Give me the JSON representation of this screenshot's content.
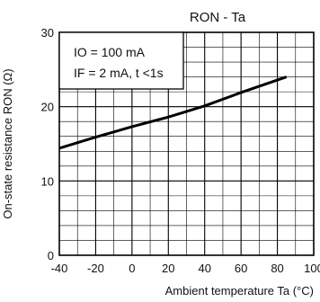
{
  "chart_data": {
    "type": "line",
    "title": "RON - Ta",
    "xlabel": "Ambient temperature Ta (°C)",
    "ylabel": "On-state resistance RON (Ω)",
    "xlim": [
      -40,
      100
    ],
    "ylim": [
      0,
      30
    ],
    "x_major_ticks": [
      -40,
      -20,
      0,
      20,
      40,
      60,
      80,
      100
    ],
    "x_tick_labels": [
      "-40",
      "-20",
      "0",
      "20",
      "40",
      "60",
      "80",
      "100"
    ],
    "y_major_ticks": [
      0,
      10,
      20,
      30
    ],
    "y_tick_labels": [
      "0",
      "10",
      "20",
      "30"
    ],
    "x_minor_step": 10,
    "y_minor_step": 2,
    "grid": true,
    "annotations": [
      "IO = 100 mA",
      "IF = 2 mA, t <1s"
    ],
    "series": [
      {
        "x": [
          -40,
          -20,
          0,
          20,
          40,
          60,
          85
        ],
        "values": [
          14.4,
          15.9,
          17.3,
          18.6,
          20.1,
          21.9,
          24.0
        ],
        "color": "#000000"
      }
    ]
  }
}
